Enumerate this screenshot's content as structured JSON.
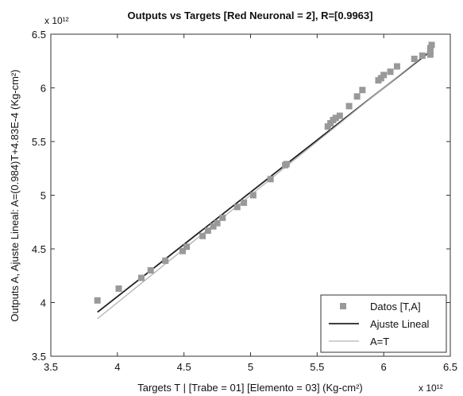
{
  "chart_data": {
    "type": "scatter",
    "title": "Outputs vs Targets [Red Neuronal = 2], R=[0.9963]",
    "xlabel": "Targets T | [Trabe = 01]  [Elemento = 03]  (Kg-cm²)",
    "ylabel": "Outputs A, Ajuste Lineal: A=(0.984)T+4.83E-4  (Kg-cm²)",
    "x_exponent_label": "x 10¹²",
    "y_exponent_label": "x 10¹²",
    "xlim": [
      3.5,
      6.5
    ],
    "ylim": [
      3.5,
      6.5
    ],
    "x_ticks": [
      "3.5",
      "4",
      "4.5",
      "5",
      "5.5",
      "6",
      "6.5"
    ],
    "y_ticks": [
      "3.5",
      "4",
      "4.5",
      "5",
      "5.5",
      "6",
      "6.5"
    ],
    "grid": false,
    "legend_position": "bottom-right",
    "series": [
      {
        "name": "Datos [T,A]",
        "kind": "markers",
        "color": "#999999",
        "points": [
          [
            3.85,
            4.02
          ],
          [
            4.01,
            4.13
          ],
          [
            4.18,
            4.23
          ],
          [
            4.25,
            4.3
          ],
          [
            4.36,
            4.39
          ],
          [
            4.49,
            4.48
          ],
          [
            4.52,
            4.52
          ],
          [
            4.64,
            4.62
          ],
          [
            4.68,
            4.67
          ],
          [
            4.72,
            4.71
          ],
          [
            4.75,
            4.74
          ],
          [
            4.79,
            4.79
          ],
          [
            4.9,
            4.89
          ],
          [
            4.95,
            4.93
          ],
          [
            5.02,
            5.0
          ],
          [
            5.15,
            5.15
          ],
          [
            5.26,
            5.28
          ],
          [
            5.27,
            5.29
          ],
          [
            5.58,
            5.64
          ],
          [
            5.6,
            5.67
          ],
          [
            5.62,
            5.7
          ],
          [
            5.64,
            5.72
          ],
          [
            5.67,
            5.74
          ],
          [
            5.74,
            5.83
          ],
          [
            5.8,
            5.92
          ],
          [
            5.84,
            5.98
          ],
          [
            5.96,
            6.07
          ],
          [
            5.98,
            6.09
          ],
          [
            6.0,
            6.12
          ],
          [
            6.05,
            6.15
          ],
          [
            6.1,
            6.2
          ],
          [
            6.23,
            6.27
          ],
          [
            6.29,
            6.3
          ],
          [
            6.35,
            6.31
          ],
          [
            6.35,
            6.34
          ],
          [
            6.35,
            6.37
          ],
          [
            6.36,
            6.4
          ]
        ]
      },
      {
        "name": "Ajuste Lineal",
        "kind": "line",
        "color": "#222222",
        "points": [
          [
            3.85,
            3.91
          ],
          [
            6.36,
            6.35
          ]
        ]
      },
      {
        "name": "A=T",
        "kind": "line",
        "color": "#b3b3b3",
        "points": [
          [
            3.85,
            3.85
          ],
          [
            6.36,
            6.36
          ]
        ]
      }
    ]
  }
}
